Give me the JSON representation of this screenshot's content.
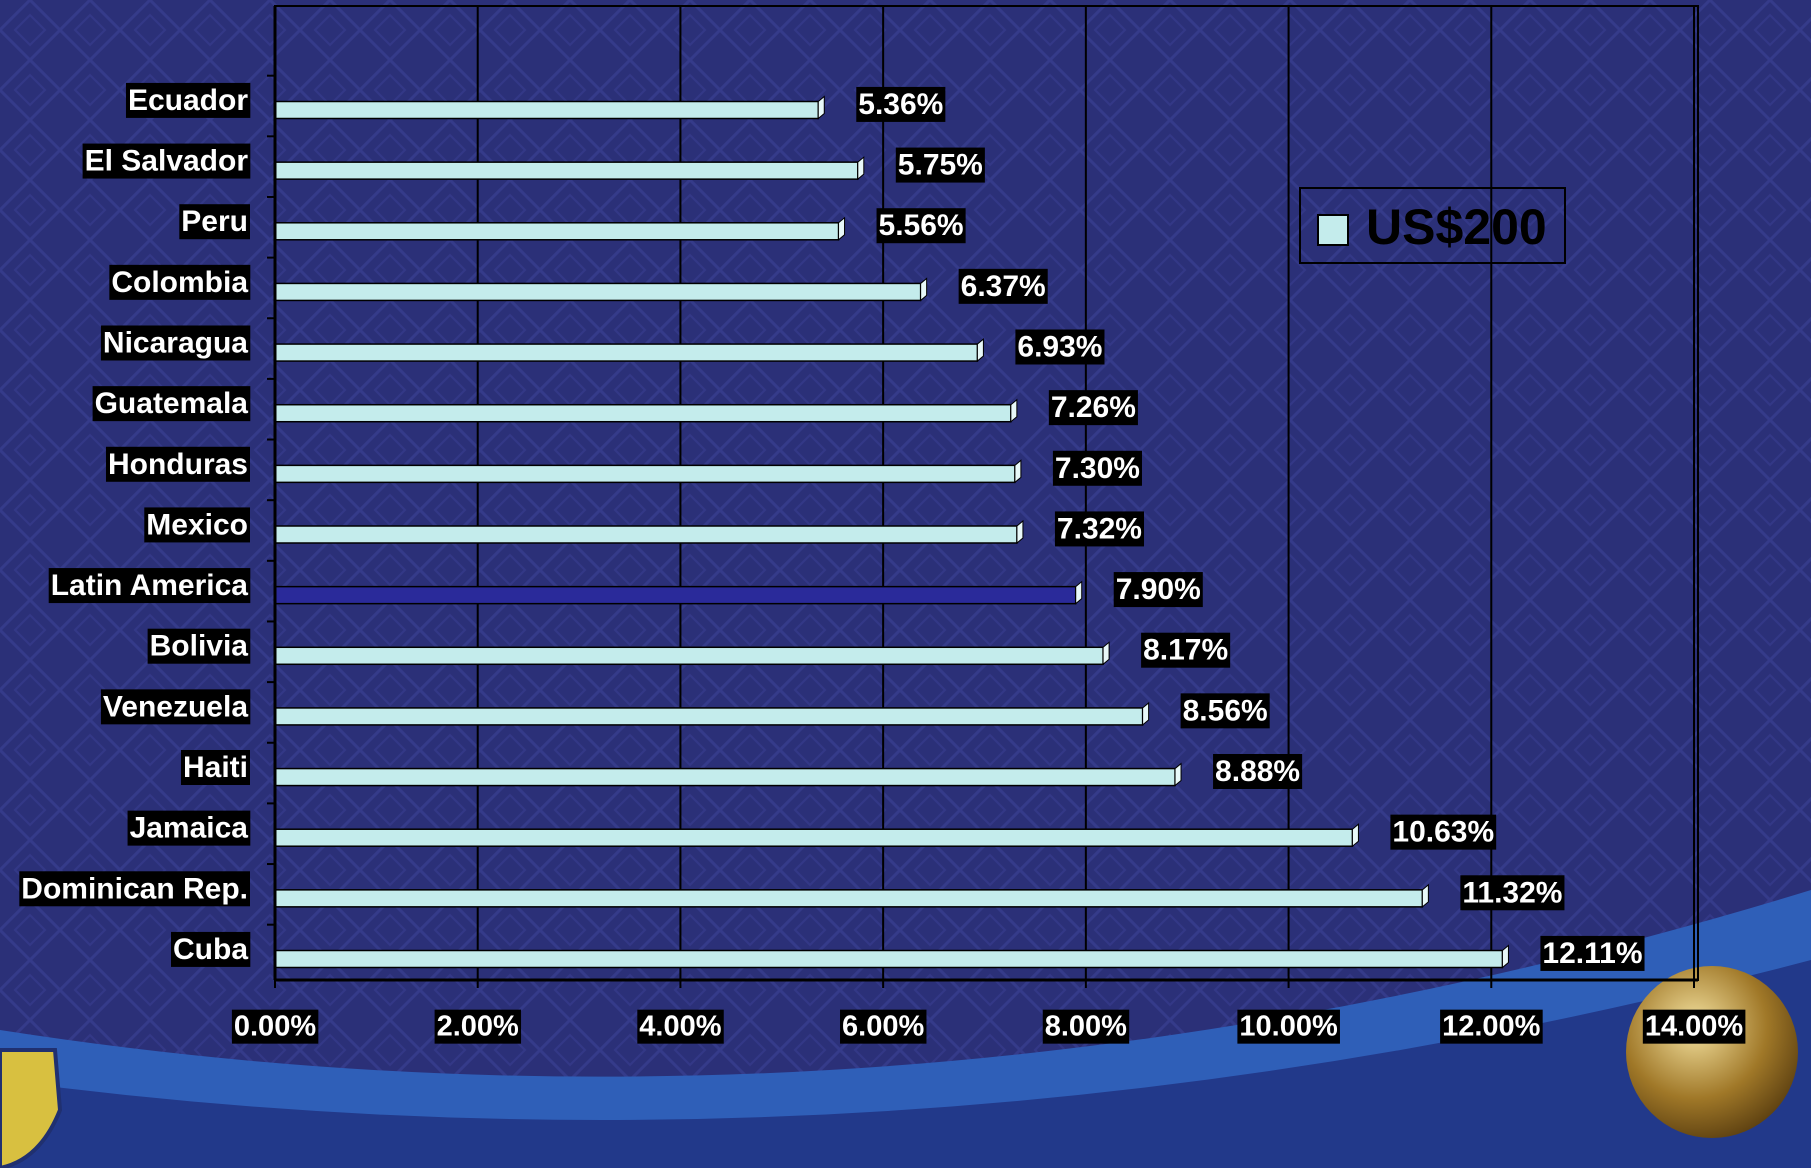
{
  "chart_data": {
    "type": "hbar",
    "categories": [
      "Ecuador",
      "El Salvador",
      "Peru",
      "Colombia",
      "Nicaragua",
      "Guatemala",
      "Honduras",
      "Mexico",
      "Latin America",
      "Bolivia",
      "Venezuela",
      "Haiti",
      "Jamaica",
      "Dominican Rep.",
      "Cuba"
    ],
    "series": [
      {
        "name": "US$200",
        "color": "#c4ecec",
        "values": [
          5.36,
          5.75,
          5.56,
          6.37,
          6.93,
          7.26,
          7.3,
          7.32,
          7.9,
          8.17,
          8.56,
          8.88,
          10.63,
          11.32,
          12.11
        ],
        "value_labels": [
          "5.36%",
          "5.75%",
          "5.56%",
          "6.37%",
          "6.93%",
          "7.26%",
          "7.30%",
          "7.32%",
          "7.90%",
          "8.17%",
          "8.56%",
          "8.88%",
          "10.63%",
          "11.32%",
          "12.11%"
        ],
        "bar_colors": [
          "#c4ecec",
          "#c4ecec",
          "#c4ecec",
          "#c4ecec",
          "#c4ecec",
          "#c4ecec",
          "#c4ecec",
          "#c4ecec",
          "#2a2a9a",
          "#c4ecec",
          "#c4ecec",
          "#c4ecec",
          "#c4ecec",
          "#c4ecec",
          "#c4ecec"
        ]
      }
    ],
    "xlim": [
      0,
      14
    ],
    "xticks": [
      {
        "value": 0,
        "label": "0.00%"
      },
      {
        "value": 2,
        "label": "2.00%"
      },
      {
        "value": 4,
        "label": "4.00%"
      },
      {
        "value": 6,
        "label": "6.00%"
      },
      {
        "value": 8,
        "label": "8.00%"
      },
      {
        "value": 10,
        "label": "10.00%"
      },
      {
        "value": 12,
        "label": "12.00%"
      },
      {
        "value": 14,
        "label": "14.00%"
      }
    ],
    "grid": true,
    "legend": "upper right"
  }
}
